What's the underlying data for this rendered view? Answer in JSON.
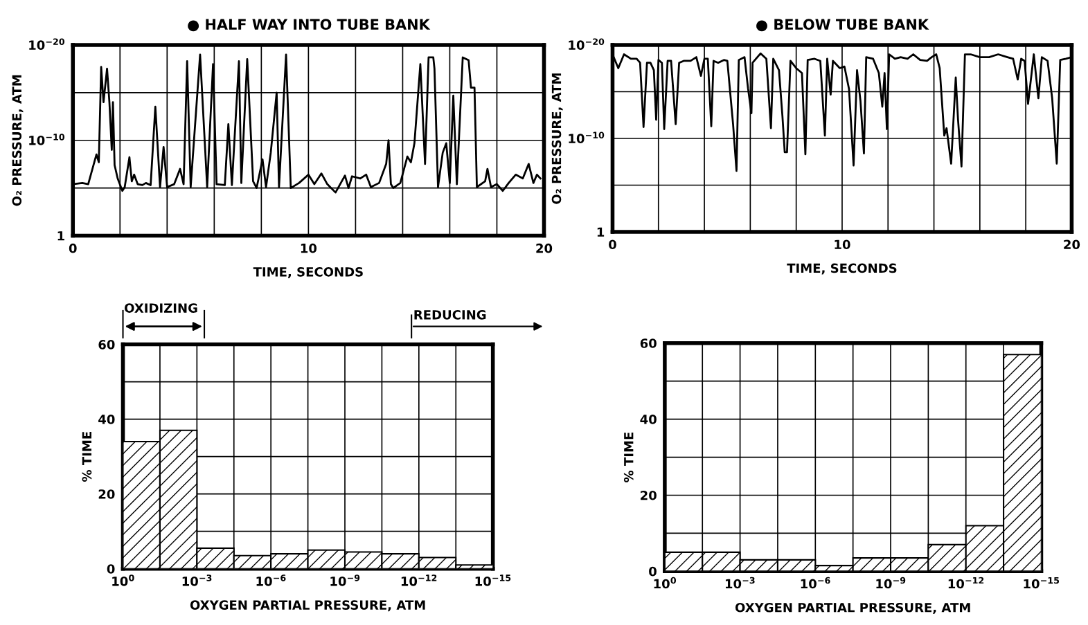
{
  "chart_data": [
    {
      "type": "line",
      "title": "● HALF WAY INTO TUBE BANK",
      "xlabel": "TIME, SECONDS",
      "ylabel": "O₂ PRESSURE, ATM",
      "log": "y",
      "grid": true,
      "marker": "none",
      "line_style": "solid",
      "xlim": [
        0,
        20
      ],
      "xticks": [
        0,
        {
          "value": 2,
          "label": null
        },
        {
          "value": 4,
          "label": null
        },
        {
          "value": 6,
          "label": null
        },
        {
          "value": 8,
          "label": null
        },
        10,
        {
          "value": 12,
          "label": null
        },
        {
          "value": 14,
          "label": null
        },
        {
          "value": 16,
          "label": null
        },
        {
          "value": 18,
          "label": null
        },
        20
      ],
      "ylim": [
        1,
        1e-20
      ],
      "yticks": [
        1,
        {
          "value": 1e-05,
          "label": null
        },
        {
          "value": 1e-10,
          "label": "10$^{−10}$"
        },
        {
          "value": 1e-15,
          "label": null
        },
        {
          "value": 1e-20,
          "label": "10$^{−20}$"
        }
      ],
      "series": [
        {
          "color": "#000000",
          "x": [
            0,
            0.4,
            0.65,
            1.0,
            1.1,
            1.2,
            1.3,
            1.45,
            1.55,
            1.65,
            1.7,
            1.77,
            1.9,
            2.1,
            2.2,
            2.4,
            2.5,
            2.6,
            2.75,
            2.95,
            3.1,
            3.3,
            3.5,
            3.7,
            3.85,
            4.0,
            4.3,
            4.55,
            4.7,
            4.85,
            5.0,
            5.4,
            5.7,
            5.95,
            6.1,
            6.45,
            6.6,
            6.75,
            7.05,
            7.15,
            7.4,
            7.65,
            7.8,
            8.05,
            8.2,
            8.4,
            8.65,
            8.75,
            9.05,
            9.25,
            9.6,
            10.0,
            10.25,
            10.55,
            10.8,
            11.15,
            11.55,
            11.7,
            11.85,
            12.2,
            12.45,
            12.65,
            13.0,
            13.3,
            13.4,
            13.5,
            13.6,
            13.9,
            14.2,
            14.35,
            14.5,
            14.75,
            14.95,
            15.1,
            15.3,
            15.35,
            15.5,
            15.7,
            15.85,
            16.0,
            16.15,
            16.3,
            16.55,
            16.8,
            16.9,
            17.05,
            17.15,
            17.5,
            17.6,
            17.75,
            18.0,
            18.25,
            18.5,
            18.8,
            19.1,
            19.35,
            19.55,
            19.7,
            19.85
          ],
          "values": [
            4e-06,
            3e-06,
            4e-06,
            3e-09,
            2e-08,
            2e-18,
            1e-14,
            3e-18,
            1e-14,
            1e-09,
            1e-14,
            4e-08,
            1e-06,
            2e-05,
            8e-06,
            6e-09,
            2e-06,
            4e-07,
            4e-06,
            5e-06,
            3e-06,
            5e-06,
            3e-14,
            8e-06,
            5e-10,
            8e-06,
            4e-06,
            1e-07,
            4e-06,
            5e-19,
            8e-06,
            1e-19,
            8e-06,
            1e-18,
            4e-06,
            5e-06,
            2e-12,
            5e-06,
            5e-19,
            3e-06,
            3e-19,
            2e-06,
            1e-05,
            1e-08,
            8e-06,
            2e-09,
            1e-15,
            8e-06,
            1e-19,
            1e-05,
            3e-06,
            4e-07,
            4e-06,
            3e-07,
            4e-06,
            3e-05,
            5e-07,
            1e-05,
            6e-07,
            1e-06,
            4e-07,
            8e-06,
            3e-06,
            3e-08,
            1e-10,
            4e-06,
            1e-05,
            3e-06,
            5e-09,
            2e-08,
            2e-10,
            1e-18,
            3e-08,
            2e-19,
            2e-19,
            3e-18,
            8e-06,
            2e-09,
            2e-10,
            3e-06,
            2e-15,
            4e-06,
            2e-19,
            4e-19,
            3e-16,
            3e-16,
            8e-06,
            2e-06,
            1e-07,
            8e-06,
            4e-06,
            2e-05,
            3e-06,
            4e-07,
            1e-06,
            3e-08,
            3e-06,
            4e-07,
            1e-06
          ]
        }
      ]
    },
    {
      "type": "line",
      "title": "● BELOW TUBE BANK",
      "xlabel": "TIME, SECONDS",
      "ylabel": "O₂ PRESSURE, ATM",
      "log": "y",
      "grid": true,
      "marker": "none",
      "line_style": "solid",
      "xlim": [
        0,
        20
      ],
      "xticks": [
        0,
        {
          "value": 2,
          "label": null
        },
        {
          "value": 4,
          "label": null
        },
        {
          "value": 6,
          "label": null
        },
        {
          "value": 8,
          "label": null
        },
        10,
        {
          "value": 12,
          "label": null
        },
        {
          "value": 14,
          "label": null
        },
        {
          "value": 16,
          "label": null
        },
        {
          "value": 18,
          "label": null
        },
        20
      ],
      "ylim": [
        1,
        1e-20
      ],
      "yticks": [
        1,
        {
          "value": 1e-05,
          "label": null
        },
        {
          "value": 1e-10,
          "label": "10$^{−10}$"
        },
        {
          "value": 1e-15,
          "label": null
        },
        {
          "value": 1e-20,
          "label": "10$^{−20}$"
        }
      ],
      "series": [
        {
          "color": "#000000",
          "x": [
            0.05,
            0.25,
            0.5,
            0.8,
            1.05,
            1.2,
            1.35,
            1.5,
            1.65,
            1.8,
            1.9,
            2.0,
            2.15,
            2.25,
            2.4,
            2.55,
            2.75,
            2.9,
            3.1,
            3.4,
            3.65,
            3.85,
            4.0,
            4.15,
            4.3,
            4.4,
            4.6,
            4.85,
            5.0,
            5.25,
            5.4,
            5.5,
            5.75,
            5.9,
            6.05,
            6.1,
            6.45,
            6.7,
            6.9,
            7.0,
            7.25,
            7.4,
            7.5,
            7.6,
            7.75,
            8.0,
            8.25,
            8.4,
            8.5,
            8.8,
            9.05,
            9.25,
            9.35,
            9.5,
            9.6,
            9.9,
            10.1,
            10.3,
            10.5,
            10.65,
            10.8,
            10.95,
            11.05,
            11.35,
            11.6,
            11.75,
            11.85,
            11.95,
            12.05,
            12.3,
            12.55,
            12.85,
            13.1,
            13.4,
            13.7,
            13.9,
            14.1,
            14.25,
            14.45,
            14.55,
            14.75,
            14.95,
            15.05,
            15.2,
            15.35,
            15.6,
            16.0,
            16.4,
            16.8,
            17.2,
            17.45,
            17.65,
            17.8,
            17.95,
            18.1,
            18.35,
            18.55,
            18.7,
            18.95,
            19.15,
            19.35,
            19.5,
            19.75,
            20.0
          ],
          "values": [
            2e-19,
            3e-18,
            1e-19,
            3e-19,
            3e-19,
            8e-19,
            6e-12,
            8e-19,
            8e-19,
            5e-18,
            1e-12,
            4e-19,
            8e-19,
            1e-11,
            5e-19,
            5e-19,
            3e-12,
            8e-19,
            5e-19,
            5e-19,
            2e-19,
            2e-17,
            3e-19,
            3e-19,
            5e-12,
            5e-19,
            8e-19,
            4e-19,
            5e-19,
            3e-12,
            3e-07,
            4e-19,
            2e-19,
            4e-16,
            2e-13,
            8e-19,
            8e-20,
            3e-19,
            8e-12,
            3e-19,
            5e-18,
            4e-13,
            3e-09,
            3e-09,
            5e-19,
            3e-18,
            1e-17,
            5e-09,
            4e-19,
            3e-19,
            5e-19,
            5e-11,
            3e-19,
            2e-15,
            5e-19,
            3e-18,
            2e-18,
            5e-16,
            8e-08,
            5e-18,
            1e-14,
            4e-09,
            2e-19,
            3e-19,
            1e-17,
            4e-14,
            1e-17,
            1e-11,
            1e-19,
            3e-19,
            2e-19,
            3e-19,
            1e-19,
            4e-19,
            5e-19,
            2e-19,
            1e-19,
            3e-18,
            5e-11,
            8e-12,
            5e-08,
            3e-17,
            1e-12,
            1e-07,
            1e-19,
            1e-19,
            2e-19,
            2e-19,
            1e-19,
            2e-19,
            3e-19,
            5e-17,
            3e-19,
            5e-19,
            2e-14,
            1e-19,
            5e-15,
            2e-19,
            5e-19,
            5e-15,
            5e-08,
            4e-19,
            3e-19,
            2e-19
          ]
        }
      ]
    },
    {
      "type": "histogram",
      "xlabel": "OXYGEN PARTIAL PRESSURE, ATM",
      "ylabel": "% TIME",
      "log": "x",
      "grid": true,
      "color": "#000000",
      "annotations": [
        "OXIDIZING",
        "REDUCING"
      ],
      "bins": [
        1,
        0.03162,
        0.001,
        3.162e-05,
        1e-06,
        3.162e-08,
        1e-09,
        3.162e-11,
        1e-12,
        3.162e-14,
        1e-15
      ],
      "values": [
        34,
        37,
        5.5,
        3.5,
        4,
        5,
        4.5,
        4,
        3,
        1
      ],
      "xlim": [
        1,
        1e-15
      ],
      "xticks": [
        {
          "value": 1,
          "label": "10$^{0}$"
        },
        {
          "value": 0.03162,
          "label": null
        },
        {
          "value": 0.001,
          "label": "10$^{−3}$"
        },
        {
          "value": 3.162e-05,
          "label": null
        },
        {
          "value": 1e-06,
          "label": "10$^{−6}$"
        },
        {
          "value": 3.162e-08,
          "label": null
        },
        {
          "value": 1e-09,
          "label": "10$^{−9}$"
        },
        {
          "value": 3.162e-11,
          "label": null
        },
        {
          "value": 1e-12,
          "label": "10$^{−12}$"
        },
        {
          "value": 3.162e-14,
          "label": null
        },
        {
          "value": 1e-15,
          "label": "10$^{−15}$"
        }
      ],
      "ylim": [
        0,
        60
      ],
      "yticks": [
        0,
        {
          "value": 10,
          "label": null
        },
        20,
        {
          "value": 30,
          "label": null
        },
        40,
        {
          "value": 50,
          "label": null
        },
        60
      ]
    },
    {
      "type": "histogram",
      "xlabel": "OXYGEN PARTIAL PRESSURE, ATM",
      "ylabel": "% TIME",
      "log": "x",
      "grid": true,
      "color": "#000000",
      "bins": [
        1,
        0.03162,
        0.001,
        3.162e-05,
        1e-06,
        3.162e-08,
        1e-09,
        3.162e-11,
        1e-12,
        3.162e-14,
        1e-15
      ],
      "values": [
        5,
        5,
        3,
        3,
        1.5,
        3.5,
        3.5,
        7,
        12,
        57
      ],
      "xlim": [
        1,
        1e-15
      ],
      "xticks": [
        {
          "value": 1,
          "label": "10$^{0}$"
        },
        {
          "value": 0.03162,
          "label": null
        },
        {
          "value": 0.001,
          "label": "10$^{−3}$"
        },
        {
          "value": 3.162e-05,
          "label": null
        },
        {
          "value": 1e-06,
          "label": "10$^{−6}$"
        },
        {
          "value": 3.162e-08,
          "label": null
        },
        {
          "value": 1e-09,
          "label": "10$^{−9}$"
        },
        {
          "value": 3.162e-11,
          "label": null
        },
        {
          "value": 1e-12,
          "label": "10$^{−12}$"
        },
        {
          "value": 3.162e-14,
          "label": null
        },
        {
          "value": 1e-15,
          "label": "10$^{−15}$"
        }
      ],
      "ylim": [
        0,
        60
      ],
      "yticks": [
        0,
        {
          "value": 10,
          "label": null
        },
        20,
        {
          "value": 30,
          "label": null
        },
        40,
        {
          "value": 50,
          "label": null
        },
        60
      ]
    }
  ]
}
